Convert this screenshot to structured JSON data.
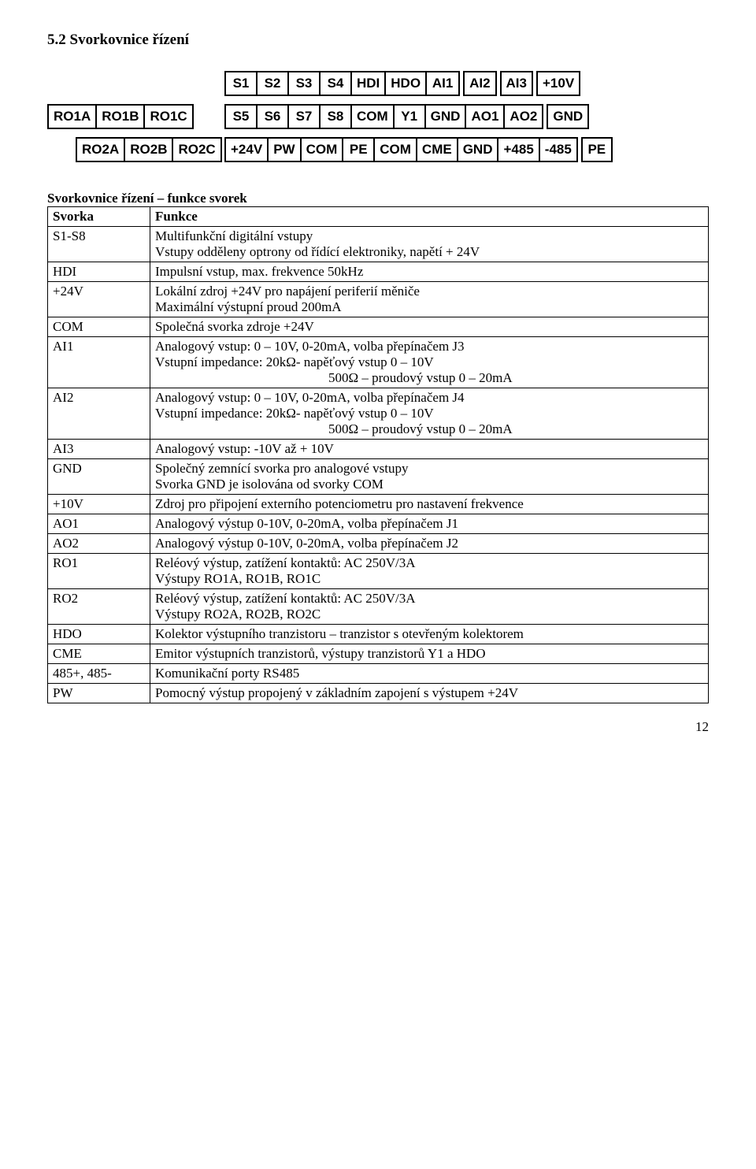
{
  "section_title": "5.2 Svorkovnice řízení",
  "diagram": {
    "row1": {
      "group1": [
        "S1",
        "S2",
        "S3",
        "S4",
        "HDI",
        "HDO",
        "AI1"
      ],
      "singles": [
        "AI2",
        "AI3",
        "+10V"
      ]
    },
    "row2": {
      "left_group": [
        "RO1A",
        "RO1B",
        "RO1C"
      ],
      "right_group1": [
        "S5",
        "S6",
        "S7",
        "S8",
        "COM",
        "Y1",
        "GND",
        "AO1",
        "AO2"
      ],
      "right_single": "GND"
    },
    "row3": {
      "left_group": [
        "RO2A",
        "RO2B",
        "RO2C"
      ],
      "right_group1": [
        "+24V",
        "PW",
        "COM",
        "PE",
        "COM",
        "CME",
        "GND",
        "+485",
        "-485"
      ],
      "right_single": "PE"
    }
  },
  "table_title": "Svorkovnice řízení – funkce svorek",
  "header": {
    "c1": "Svorka",
    "c2": "Funkce"
  },
  "rows": [
    {
      "k": "S1-S8",
      "v": "Multifunkční digitální vstupy\nVstupy odděleny optrony od řídící elektroniky, napětí + 24V"
    },
    {
      "k": "HDI",
      "v": "Impulsní vstup, max. frekvence 50kHz"
    },
    {
      "k": "+24V",
      "v": "Lokální zdroj +24V pro napájení periferií měniče\nMaximální výstupní proud 200mA"
    },
    {
      "k": "COM",
      "v": "Společná svorka zdroje +24V"
    },
    {
      "k": "AI1",
      "v": "Analogový vstup: 0 – 10V, 0-20mA, volba přepínačem J3\nVstupní impedance: 20kΩ- napěťový vstup   0 – 10V",
      "indent": "500Ω – proudový vstup   0 – 20mA"
    },
    {
      "k": "AI2",
      "v": "Analogový vstup: 0 – 10V, 0-20mA, volba přepínačem J4\nVstupní impedance: 20kΩ- napěťový vstup   0 – 10V",
      "indent": "500Ω – proudový vstup   0 – 20mA"
    },
    {
      "k": "AI3",
      "v": "Analogový vstup: -10V až + 10V\n "
    },
    {
      "k": "GND",
      "v": "Společný zemnící svorka pro analogové vstupy\nSvorka GND je isolována od svorky COM"
    },
    {
      "k": "+10V",
      "v": "Zdroj pro připojení  externího potenciometru pro nastavení frekvence\n "
    },
    {
      "k": "AO1",
      "v": "Analogový výstup 0-10V, 0-20mA,  volba přepínačem J1\n "
    },
    {
      "k": "AO2",
      "v": "Analogový výstup 0-10V, 0-20mA,  volba přepínačem J2\n "
    },
    {
      "k": "RO1",
      "v": "Reléový výstup, zatížení kontaktů: AC 250V/3A\nVýstupy RO1A, RO1B, RO1C"
    },
    {
      "k": "RO2",
      "v": "Reléový výstup, zatížení kontaktů: AC 250V/3A\nVýstupy RO2A, RO2B, RO2C"
    },
    {
      "k": "HDO",
      "v": "Kolektor výstupního tranzistoru – tranzistor s otevřeným kolektorem"
    },
    {
      "k": "CME",
      "v": "Emitor výstupních tranzistorů, výstupy tranzistorů Y1 a HDO"
    },
    {
      "k": "485+, 485-",
      "v": "Komunikační porty RS485\n "
    },
    {
      "k": "PW",
      "v": "Pomocný výstup  propojený v základním zapojení s výstupem +24V"
    }
  ],
  "page_number": "12"
}
